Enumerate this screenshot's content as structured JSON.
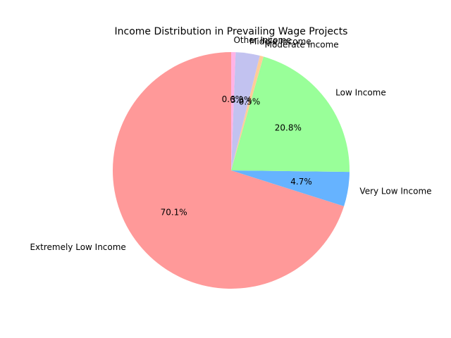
{
  "chart_data": {
    "type": "pie",
    "title": "Income Distribution in Prevailing Wage Projects",
    "start_angle_deg": 90,
    "direction": "counterclockwise",
    "slices": [
      {
        "label": "Extremely Low Income",
        "value": 70.1,
        "pct_label": "70.1%",
        "color": "#ff9999"
      },
      {
        "label": "Very Low Income",
        "value": 4.7,
        "pct_label": "4.7%",
        "color": "#66b3ff"
      },
      {
        "label": "Low Income",
        "value": 20.8,
        "pct_label": "20.8%",
        "color": "#99ff99"
      },
      {
        "label": "Moderate Income",
        "value": 0.5,
        "pct_label": "0.5%",
        "color": "#ffcc99"
      },
      {
        "label": "Middle Income",
        "value": 3.3,
        "pct_label": "3.3%",
        "color": "#c2c2f0"
      },
      {
        "label": "Other Income",
        "value": 0.6,
        "pct_label": "0.6%",
        "color": "#ffb3e6"
      }
    ]
  }
}
